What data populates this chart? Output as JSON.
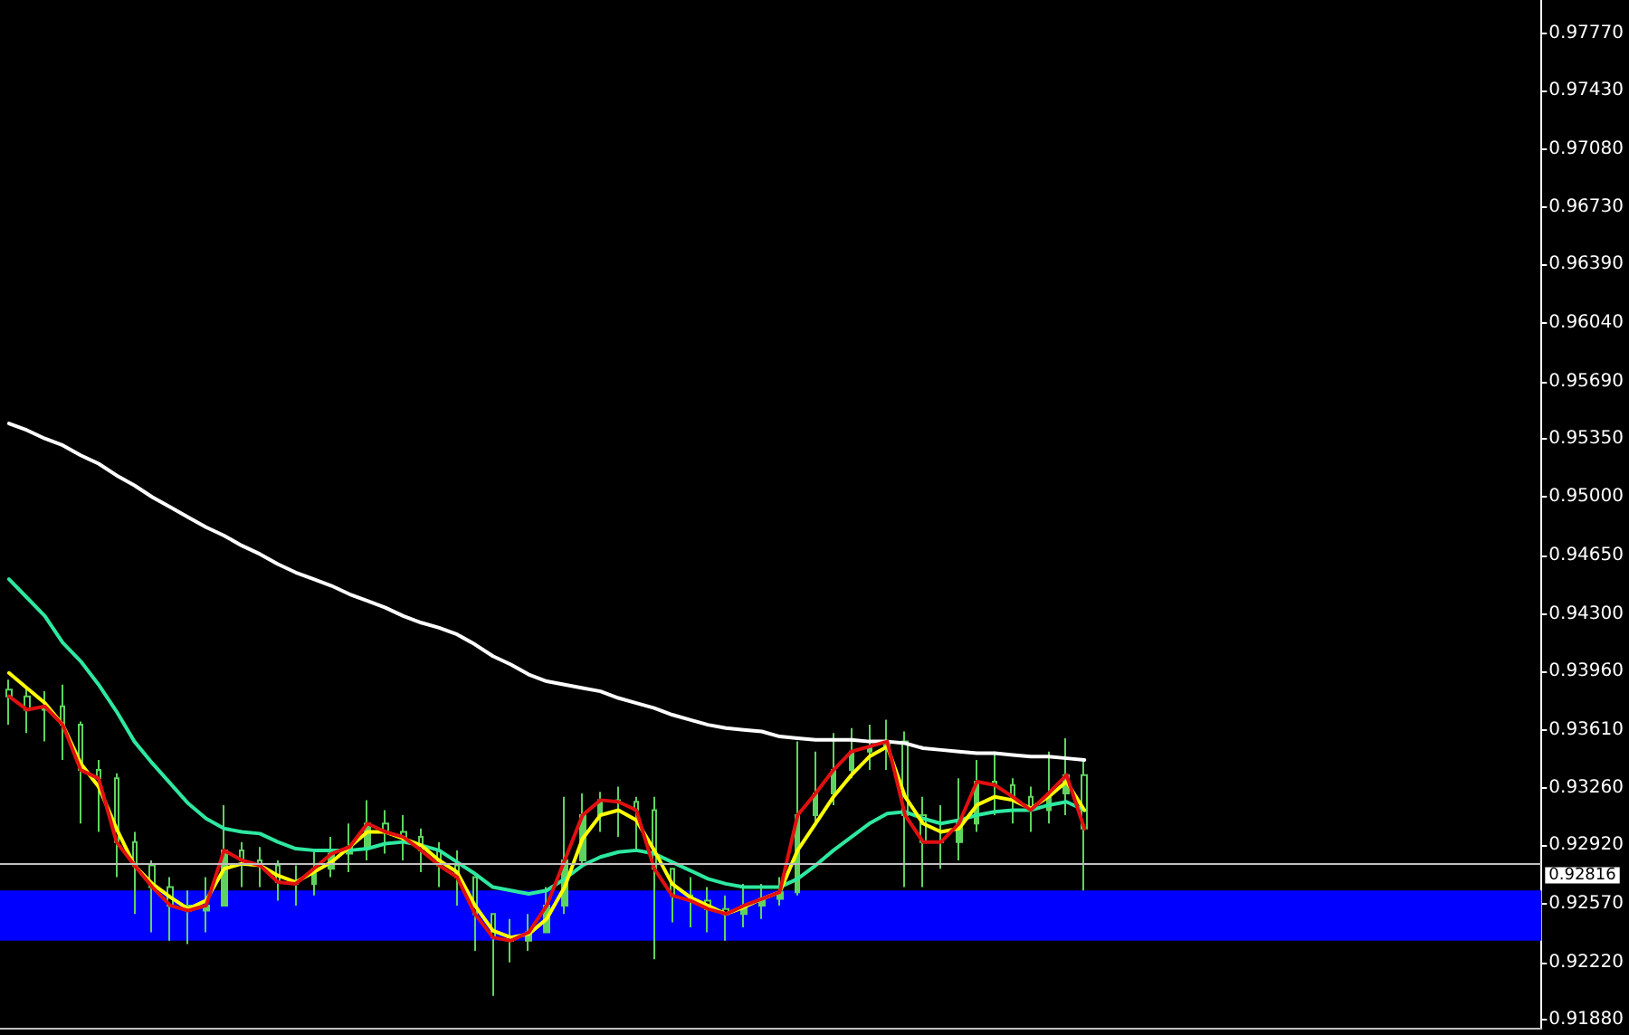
{
  "chart_data": {
    "type": "candlestick",
    "categories": [
      null,
      null,
      null,
      null,
      null,
      null,
      null,
      null,
      null,
      null,
      null,
      null,
      null,
      null,
      null,
      null,
      null,
      null,
      null,
      null,
      null,
      null,
      null,
      null,
      null,
      null,
      null,
      null,
      null,
      null,
      null,
      null,
      null,
      null,
      null,
      null,
      null,
      null,
      null,
      null,
      null,
      null,
      null,
      null,
      null,
      null,
      null,
      null,
      null,
      null,
      null,
      null,
      null,
      null,
      null,
      null,
      null,
      null,
      null,
      null,
      null,
      null,
      null,
      null,
      null,
      null,
      null,
      null,
      null,
      null,
      null,
      null,
      null,
      null,
      null,
      null,
      null,
      null,
      null,
      null,
      null,
      null,
      null,
      null,
      null,
      null
    ],
    "color": "#5fd35f",
    "ohlc": [
      [
        0.9385,
        0.9391,
        0.9364,
        0.9381
      ],
      [
        0.9381,
        0.9386,
        0.9359,
        0.9373
      ],
      [
        0.9373,
        0.9384,
        0.9354,
        0.9375
      ],
      [
        0.9375,
        0.9388,
        0.9343,
        0.9364
      ],
      [
        0.9364,
        0.9366,
        0.9305,
        0.9337
      ],
      [
        0.9337,
        0.9343,
        0.93,
        0.9332
      ],
      [
        0.9332,
        0.9335,
        0.9273,
        0.9294
      ],
      [
        0.9294,
        0.93,
        0.9251,
        0.928
      ],
      [
        0.928,
        0.9283,
        0.924,
        0.9267
      ],
      [
        0.9267,
        0.9273,
        0.9235,
        0.9256
      ],
      [
        0.9256,
        0.9265,
        0.9233,
        0.9253
      ],
      [
        0.9253,
        0.9273,
        0.924,
        0.9256
      ],
      [
        0.9256,
        0.9316,
        0.9256,
        0.9289
      ],
      [
        0.9289,
        0.9294,
        0.9267,
        0.9283
      ],
      [
        0.9283,
        0.9291,
        0.9267,
        0.928
      ],
      [
        0.928,
        0.9283,
        0.9259,
        0.927
      ],
      [
        0.927,
        0.928,
        0.9256,
        0.9269
      ],
      [
        0.9269,
        0.9289,
        0.9262,
        0.9278
      ],
      [
        0.9278,
        0.9297,
        0.9273,
        0.9287
      ],
      [
        0.9287,
        0.9305,
        0.9276,
        0.9291
      ],
      [
        0.9291,
        0.9319,
        0.9283,
        0.9305
      ],
      [
        0.9305,
        0.9313,
        0.9287,
        0.93
      ],
      [
        0.93,
        0.931,
        0.9283,
        0.9297
      ],
      [
        0.9297,
        0.9302,
        0.9276,
        0.9289
      ],
      [
        0.9289,
        0.9294,
        0.9267,
        0.928
      ],
      [
        0.928,
        0.9289,
        0.9256,
        0.9273
      ],
      [
        0.9273,
        0.9273,
        0.9229,
        0.9251
      ],
      [
        0.9251,
        0.9251,
        0.9202,
        0.9237
      ],
      [
        0.9237,
        0.9248,
        0.9222,
        0.9235
      ],
      [
        0.9235,
        0.9251,
        0.9229,
        0.924
      ],
      [
        0.924,
        0.9267,
        0.924,
        0.9256
      ],
      [
        0.9256,
        0.9321,
        0.9251,
        0.9283
      ],
      [
        0.9283,
        0.9323,
        0.928,
        0.931
      ],
      [
        0.931,
        0.9324,
        0.93,
        0.9319
      ],
      [
        0.9319,
        0.9327,
        0.9297,
        0.9318
      ],
      [
        0.9318,
        0.9321,
        0.9289,
        0.9313
      ],
      [
        0.9313,
        0.9321,
        0.9224,
        0.9278
      ],
      [
        0.9278,
        0.9278,
        0.9246,
        0.9262
      ],
      [
        0.9262,
        0.9273,
        0.9243,
        0.9259
      ],
      [
        0.9259,
        0.9267,
        0.924,
        0.9254
      ],
      [
        0.9254,
        0.9262,
        0.9235,
        0.9251
      ],
      [
        0.9251,
        0.9269,
        0.9243,
        0.9256
      ],
      [
        0.9256,
        0.9269,
        0.9248,
        0.926
      ],
      [
        0.926,
        0.9273,
        0.9256,
        0.9264
      ],
      [
        0.9264,
        0.9354,
        0.9262,
        0.931
      ],
      [
        0.931,
        0.9348,
        0.9305,
        0.9323
      ],
      [
        0.9323,
        0.9359,
        0.9316,
        0.9337
      ],
      [
        0.9337,
        0.9362,
        0.9332,
        0.9348
      ],
      [
        0.9348,
        0.9364,
        0.9337,
        0.9351
      ],
      [
        0.9351,
        0.9367,
        0.9337,
        0.9354
      ],
      [
        0.9354,
        0.936,
        0.9267,
        0.931
      ],
      [
        0.931,
        0.9321,
        0.9267,
        0.9294
      ],
      [
        0.9294,
        0.9316,
        0.9278,
        0.9294
      ],
      [
        0.9294,
        0.9332,
        0.9283,
        0.9305
      ],
      [
        0.9305,
        0.9343,
        0.93,
        0.933
      ],
      [
        0.933,
        0.9348,
        0.931,
        0.9328
      ],
      [
        0.9328,
        0.9332,
        0.9305,
        0.9321
      ],
      [
        0.9321,
        0.9327,
        0.93,
        0.9313
      ],
      [
        0.9313,
        0.9348,
        0.9305,
        0.9323
      ],
      [
        0.9323,
        0.9356,
        0.931,
        0.9334
      ],
      [
        0.9334,
        0.9343,
        0.9265,
        0.9302
      ],
      null,
      null,
      null,
      null,
      null,
      null,
      null,
      null,
      null,
      null,
      null,
      null,
      null,
      null,
      null,
      null,
      null,
      null,
      null,
      null,
      null,
      null,
      null,
      null,
      null
    ],
    "series": [
      {
        "type": "line",
        "color": "#ffffff",
        "values": [
          0.9544,
          0.954,
          0.9535,
          0.9531,
          0.9525,
          0.952,
          0.9513,
          0.9507,
          0.95,
          0.9494,
          0.9488,
          0.9482,
          0.9477,
          0.9471,
          0.9466,
          0.946,
          0.9455,
          0.9451,
          0.9447,
          0.9442,
          0.9438,
          0.9434,
          0.9429,
          0.9425,
          0.9422,
          0.9418,
          0.9412,
          0.9405,
          0.94,
          0.9394,
          0.939,
          0.9388,
          0.9386,
          0.9384,
          0.938,
          0.9377,
          0.9374,
          0.937,
          0.9367,
          0.9364,
          0.9362,
          0.9361,
          0.936,
          0.9357,
          0.9356,
          0.9355,
          0.9355,
          0.9355,
          0.9354,
          0.9354,
          0.9353,
          0.935,
          0.9349,
          0.9348,
          0.9347,
          0.9347,
          0.9346,
          0.9345,
          0.9345,
          0.9344,
          0.9343,
          null,
          null,
          null,
          null,
          null,
          null,
          null,
          null,
          null,
          null,
          null,
          null,
          null,
          null,
          null,
          null,
          null,
          null,
          null,
          null,
          null,
          null,
          null,
          null,
          null
        ]
      },
      {
        "type": "line",
        "color": "#2ee8a0",
        "values": [
          0.9451,
          0.944,
          0.9429,
          0.9413,
          0.9402,
          0.9388,
          0.9372,
          0.9354,
          0.9341,
          0.9329,
          0.9317,
          0.9308,
          0.9302,
          0.93,
          0.9299,
          0.9294,
          0.929,
          0.9289,
          0.9289,
          0.9289,
          0.929,
          0.9293,
          0.9294,
          0.9292,
          0.9289,
          0.9282,
          0.9275,
          0.9267,
          0.9265,
          0.9263,
          0.9265,
          0.9272,
          0.928,
          0.9285,
          0.9288,
          0.9289,
          0.9287,
          0.9282,
          0.9277,
          0.9272,
          0.9269,
          0.9267,
          0.9267,
          0.9267,
          0.9272,
          0.928,
          0.9289,
          0.9297,
          0.9305,
          0.9311,
          0.9312,
          0.9308,
          0.9305,
          0.9307,
          0.931,
          0.9312,
          0.9313,
          0.9313,
          0.9316,
          0.9318,
          0.9313,
          null,
          null,
          null,
          null,
          null,
          null,
          null,
          null,
          null,
          null,
          null,
          null,
          null,
          null,
          null,
          null,
          null,
          null,
          null,
          null,
          null,
          null,
          null,
          null,
          null
        ]
      },
      {
        "type": "line",
        "color": "#ffff00",
        "values": [
          0.9395,
          0.9386,
          0.9377,
          0.9364,
          0.9341,
          0.9327,
          0.9302,
          0.928,
          0.9269,
          0.9261,
          0.9254,
          0.9259,
          0.9278,
          0.9281,
          0.928,
          0.9274,
          0.927,
          0.9276,
          0.9282,
          0.9291,
          0.93,
          0.93,
          0.9296,
          0.9292,
          0.9283,
          0.9276,
          0.9256,
          0.9241,
          0.9237,
          0.9239,
          0.9248,
          0.9267,
          0.9296,
          0.931,
          0.9313,
          0.9307,
          0.9289,
          0.9269,
          0.9261,
          0.9256,
          0.9251,
          0.9255,
          0.926,
          0.9264,
          0.9289,
          0.9305,
          0.9321,
          0.9334,
          0.9345,
          0.9351,
          0.9321,
          0.9305,
          0.93,
          0.9302,
          0.9316,
          0.9321,
          0.9319,
          0.9314,
          0.9321,
          0.933,
          0.9313,
          null,
          null,
          null,
          null,
          null,
          null,
          null,
          null,
          null,
          null,
          null,
          null,
          null,
          null,
          null,
          null,
          null,
          null,
          null,
          null,
          null,
          null,
          null,
          null,
          null
        ]
      },
      {
        "type": "line",
        "color": "#e01010",
        "values": [
          0.9381,
          0.9373,
          0.9375,
          0.9364,
          0.9337,
          0.9332,
          0.9294,
          0.928,
          0.9267,
          0.9256,
          0.9253,
          0.9256,
          0.9289,
          0.9283,
          0.928,
          0.927,
          0.9269,
          0.9278,
          0.9287,
          0.9291,
          0.9305,
          0.93,
          0.9297,
          0.9289,
          0.928,
          0.9273,
          0.9251,
          0.9237,
          0.9235,
          0.924,
          0.9256,
          0.9283,
          0.931,
          0.9319,
          0.9318,
          0.9313,
          0.9278,
          0.9262,
          0.9259,
          0.9254,
          0.9251,
          0.9256,
          0.926,
          0.9264,
          0.931,
          0.9323,
          0.9337,
          0.9348,
          0.9351,
          0.9354,
          0.931,
          0.9294,
          0.9294,
          0.9305,
          0.933,
          0.9328,
          0.9321,
          0.9313,
          0.9323,
          0.9334,
          0.9302,
          null,
          null,
          null,
          null,
          null,
          null,
          null,
          null,
          null,
          null,
          null,
          null,
          null,
          null,
          null,
          null,
          null,
          null,
          null,
          null,
          null,
          null,
          null,
          null,
          null
        ]
      }
    ],
    "ylim": [
      0.9183,
      0.9797
    ],
    "yticks": [
      {
        "value": 0.9777,
        "label": "0.97770"
      },
      {
        "value": 0.9743,
        "label": "0.97430"
      },
      {
        "value": 0.9708,
        "label": "0.97080"
      },
      {
        "value": 0.9673,
        "label": "0.96730"
      },
      {
        "value": 0.9639,
        "label": "0.96390"
      },
      {
        "value": 0.9604,
        "label": "0.96040"
      },
      {
        "value": 0.9569,
        "label": "0.95690"
      },
      {
        "value": 0.9535,
        "label": "0.95350"
      },
      {
        "value": 0.95,
        "label": "0.95000"
      },
      {
        "value": 0.9465,
        "label": "0.94650"
      },
      {
        "value": 0.943,
        "label": "0.94300"
      },
      {
        "value": 0.9396,
        "label": "0.93960"
      },
      {
        "value": 0.9361,
        "label": "0.93610"
      },
      {
        "value": 0.9326,
        "label": "0.93260"
      },
      {
        "value": 0.9292,
        "label": "0.92920"
      },
      {
        "value": 0.9257,
        "label": "0.92570"
      },
      {
        "value": 0.9222,
        "label": "0.92220"
      },
      {
        "value": 0.9188,
        "label": "0.91880"
      }
    ],
    "bands": [
      {
        "axis": "y",
        "from": 0.9235,
        "to": 0.9265,
        "color": "#0000ff"
      }
    ],
    "ref_lines": [
      {
        "axis": "y",
        "value": 0.92816,
        "label": "0.92816",
        "color": "#c0c0c0"
      }
    ],
    "tick_labels": "y",
    "marker": "none",
    "grid": false
  }
}
